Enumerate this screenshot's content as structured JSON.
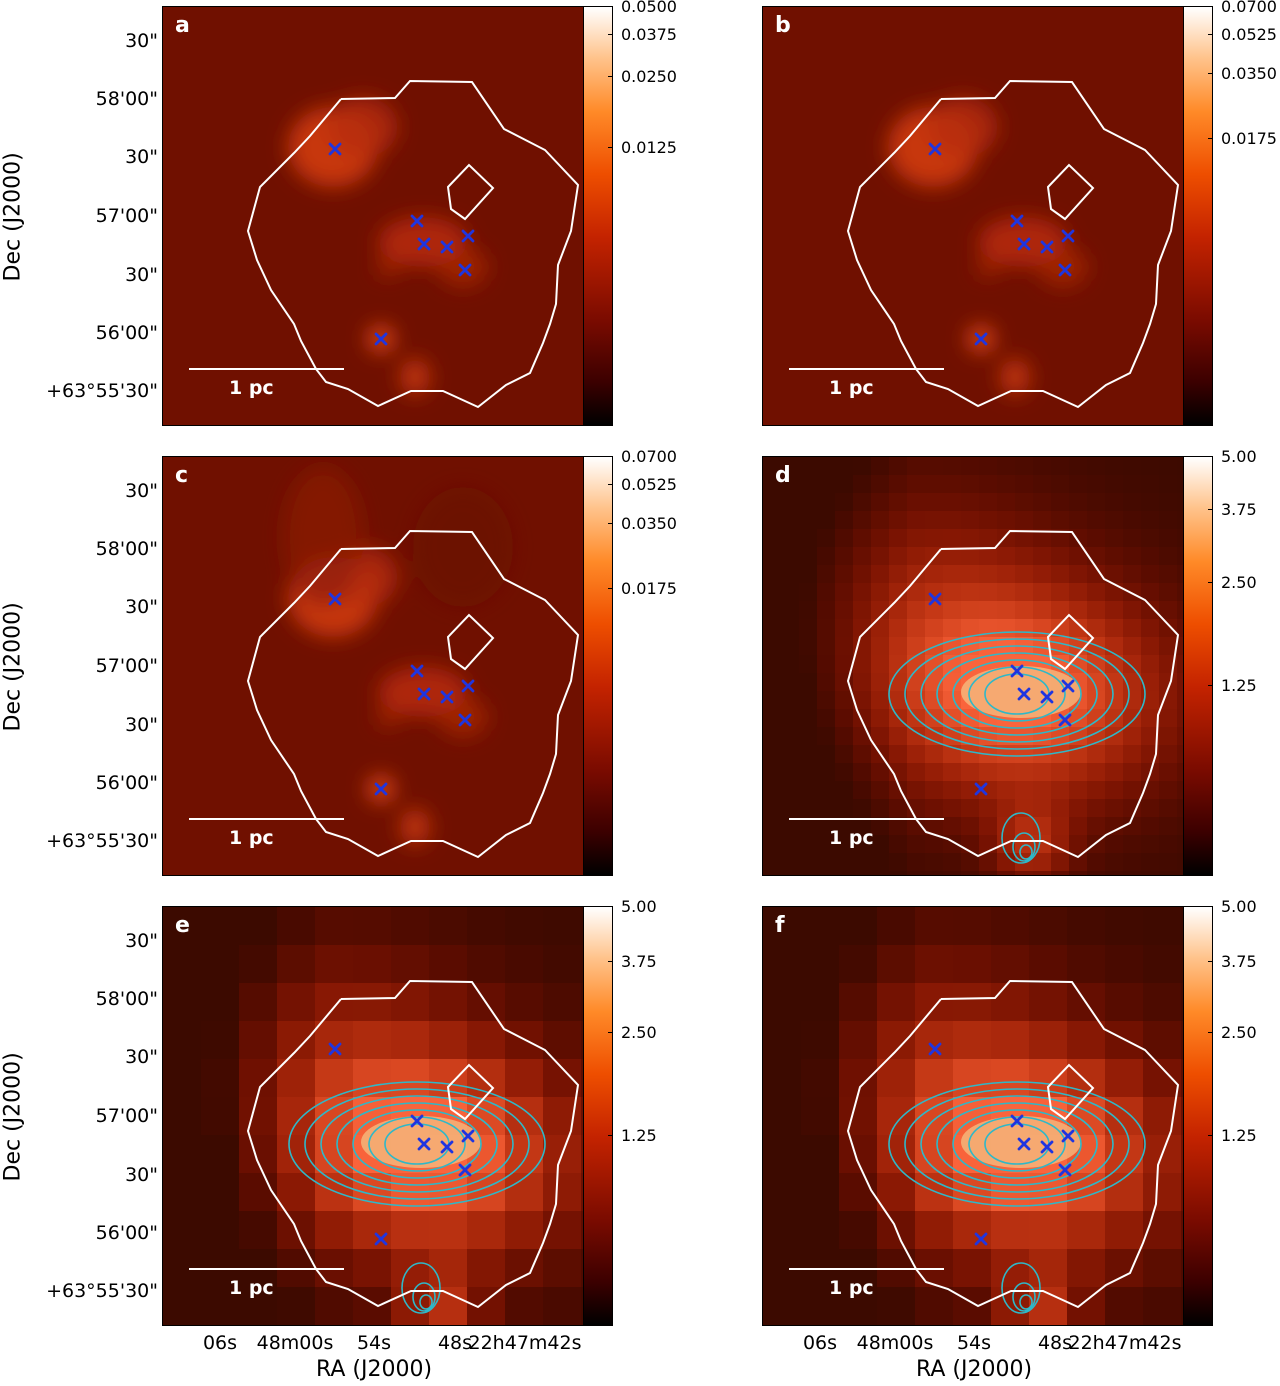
{
  "figure": {
    "panels": [
      {
        "letter": "a",
        "colorbar_ticks": [
          "0.0500",
          "0.0375",
          "0.0250",
          "0.0125"
        ]
      },
      {
        "letter": "b",
        "colorbar_ticks": [
          "0.0700",
          "0.0525",
          "0.0350",
          "0.0175"
        ]
      },
      {
        "letter": "c",
        "colorbar_ticks": [
          "0.0700",
          "0.0525",
          "0.0350",
          "0.0175"
        ]
      },
      {
        "letter": "d",
        "colorbar_ticks": [
          "5.00",
          "3.75",
          "2.50",
          "1.25"
        ]
      },
      {
        "letter": "e",
        "colorbar_ticks": [
          "5.00",
          "3.75",
          "2.50",
          "1.25"
        ]
      },
      {
        "letter": "f",
        "colorbar_ticks": [
          "5.00",
          "3.75",
          "2.50",
          "1.25"
        ]
      }
    ],
    "scale_label": "1 pc",
    "dec_ticks": [
      "30\"",
      "58'00\"",
      "30\"",
      "57'00\"",
      "30\"",
      "56'00\"",
      "+63°55'30\""
    ],
    "ra_ticks": [
      "06s",
      "48m00s",
      "54s",
      "48s",
      "22h47m42s"
    ],
    "ylabel": "Dec (J2000)",
    "xlabel": "RA (J2000)",
    "colors": {
      "boundary": "#ffffff",
      "marker": "#1f35e0",
      "contour": "#2fb8c8"
    }
  }
}
